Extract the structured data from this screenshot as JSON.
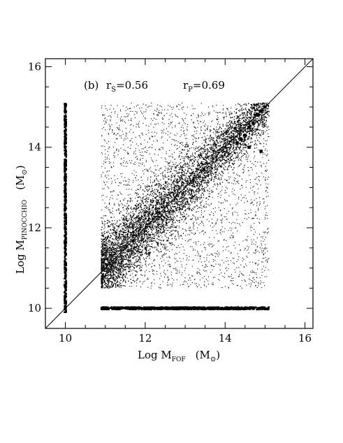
{
  "chart_data": {
    "type": "scatter",
    "panel_label": "(b)",
    "annotations": [
      {
        "text_main": "r",
        "text_sub": "S",
        "text_rest": "=0.56"
      },
      {
        "text_main": "r",
        "text_sub": "P",
        "text_rest": "=0.69"
      }
    ],
    "xlabel": {
      "main": "Log  M",
      "sub": "FOF",
      "unit": "(M",
      "unit_sub": "⊙",
      "unit_end": ")"
    },
    "ylabel": {
      "main": "Log  M",
      "sub": "PINOCCHIO",
      "unit": "(M",
      "unit_sub": "⊙",
      "unit_end": ")"
    },
    "xlim": [
      9.5,
      16.2
    ],
    "ylim": [
      9.5,
      16.2
    ],
    "xticks": [
      10,
      12,
      14,
      16
    ],
    "yticks": [
      10,
      12,
      14,
      16
    ],
    "xtick_labels": [
      "10",
      "12",
      "14",
      "16"
    ],
    "ytick_labels": [
      "10",
      "12",
      "14",
      "16"
    ],
    "grid": false,
    "legend": "none",
    "reference_line": {
      "type": "identity",
      "from": [
        9.5,
        9.5
      ],
      "to": [
        16.2,
        16.2
      ]
    },
    "cloud": {
      "x_range": [
        10.9,
        15.1
      ],
      "y_range": [
        10.5,
        15.1
      ],
      "scatter_about_identity": 0.45
    },
    "bottom_band": {
      "x_range": [
        10.9,
        15.1
      ],
      "y": 10.0
    },
    "left_column": {
      "x": 10.0,
      "y_range": [
        9.9,
        15.1
      ]
    },
    "bright_points": [
      {
        "x": 14.3,
        "y": 14.1
      },
      {
        "x": 14.5,
        "y": 14.3
      },
      {
        "x": 14.6,
        "y": 14.5
      },
      {
        "x": 14.7,
        "y": 14.6
      },
      {
        "x": 14.8,
        "y": 14.8
      },
      {
        "x": 14.9,
        "y": 14.9
      },
      {
        "x": 15.0,
        "y": 15.0
      },
      {
        "x": 14.4,
        "y": 14.2
      },
      {
        "x": 14.6,
        "y": 14.0
      },
      {
        "x": 14.9,
        "y": 13.9
      }
    ]
  }
}
